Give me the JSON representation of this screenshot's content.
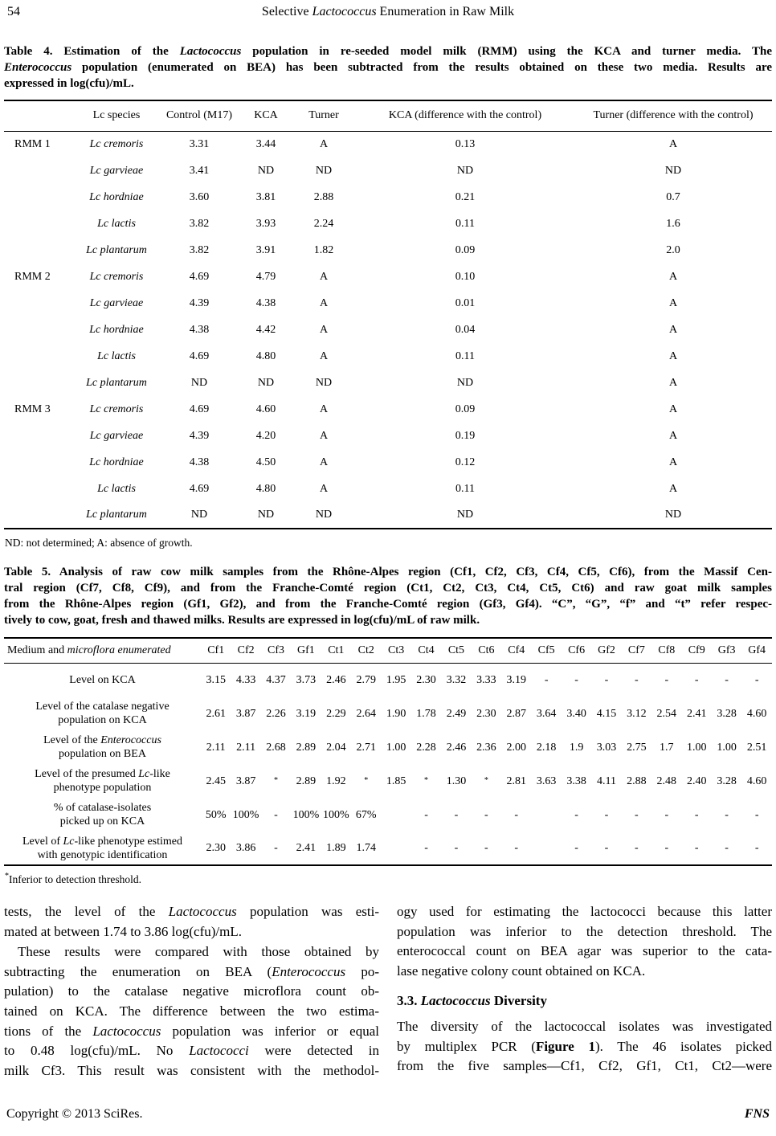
{
  "page": {
    "number": "54",
    "running_title": [
      {
        "t": "Selective "
      },
      {
        "t": "Lactococcus",
        "i": true
      },
      {
        "t": " Enumeration in Raw Milk"
      }
    ],
    "footer_left": "Copyright © 2013 SciRes.",
    "footer_right": "FNS"
  },
  "table4": {
    "caption_lines": [
      [
        {
          "t": "Table 4. Estimation of the "
        },
        {
          "t": "Lactococcus",
          "i": true
        },
        {
          "t": " population in re-seeded model milk (RMM) using the KCA and turner media. The"
        }
      ],
      [
        {
          "t": "Enterococcus",
          "i": true
        },
        {
          "t": " population (enumerated on BEA) has been subtracted from the results obtained on these two media. Results are"
        }
      ],
      [
        {
          "t": "expressed in log(cfu)/mL."
        }
      ]
    ],
    "headers": [
      "",
      "Lc species",
      "Control (M17)",
      "KCA",
      "Turner",
      "KCA (difference with the control)",
      "Turner (difference with the control)"
    ],
    "groups": [
      {
        "label": "RMM 1",
        "rows": [
          [
            "Lc cremoris",
            "3.31",
            "3.44",
            "A",
            "0.13",
            "A"
          ],
          [
            "Lc garvieae",
            "3.41",
            "ND",
            "ND",
            "ND",
            "ND"
          ],
          [
            "Lc hordniae",
            "3.60",
            "3.81",
            "2.88",
            "0.21",
            "0.7"
          ],
          [
            "Lc lactis",
            "3.82",
            "3.93",
            "2.24",
            "0.11",
            "1.6"
          ],
          [
            "Lc plantarum",
            "3.82",
            "3.91",
            "1.82",
            "0.09",
            "2.0"
          ]
        ]
      },
      {
        "label": "RMM 2",
        "rows": [
          [
            "Lc cremoris",
            "4.69",
            "4.79",
            "A",
            "0.10",
            "A"
          ],
          [
            "Lc garvieae",
            "4.39",
            "4.38",
            "A",
            "0.01",
            "A"
          ],
          [
            "Lc hordniae",
            "4.38",
            "4.42",
            "A",
            "0.04",
            "A"
          ],
          [
            "Lc lactis",
            "4.69",
            "4.80",
            "A",
            "0.11",
            "A"
          ],
          [
            "Lc plantarum",
            "ND",
            "ND",
            "ND",
            "ND",
            "A"
          ]
        ]
      },
      {
        "label": "RMM 3",
        "rows": [
          [
            "Lc cremoris",
            "4.69",
            "4.60",
            "A",
            "0.09",
            "A"
          ],
          [
            "Lc garvieae",
            "4.39",
            "4.20",
            "A",
            "0.19",
            "A"
          ],
          [
            "Lc hordniae",
            "4.38",
            "4.50",
            "A",
            "0.12",
            "A"
          ],
          [
            "Lc lactis",
            "4.69",
            "4.80",
            "A",
            "0.11",
            "A"
          ],
          [
            "Lc plantarum",
            "ND",
            "ND",
            "ND",
            "ND",
            "ND"
          ]
        ]
      }
    ],
    "footnote": "ND: not determined; A: absence of growth."
  },
  "table5": {
    "caption_lines": [
      [
        {
          "t": "Table 5. Analysis of raw cow milk samples from the Rhône-Alpes region (Cf1, Cf2, Cf3, Cf4, Cf5, Cf6), from the Massif Cen-"
        }
      ],
      [
        {
          "t": "tral region (Cf7, Cf8, Cf9), and from the Franche-Comté region (Ct1, Ct2, Ct3, Ct4, Ct5, Ct6) and raw goat milk samples"
        }
      ],
      [
        {
          "t": "from the Rhône-Alpes region (Gf1, Gf2), and from the Franche-Comté region (Gf3, Gf4). “C”, “G”, “f” and “t” refer respec-"
        }
      ],
      [
        {
          "t": "tively to cow, goat, fresh and thawed milks. Results are expressed in log(cfu)/mL of raw milk."
        }
      ]
    ],
    "first_header_segments": [
      {
        "t": "Medium and "
      },
      {
        "t": "microflora enumerated",
        "i": true
      }
    ],
    "sample_headers": [
      "Cf1",
      "Cf2",
      "Cf3",
      "Gf1",
      "Ct1",
      "Ct2",
      "Ct3",
      "Ct4",
      "Ct5",
      "Ct6",
      "Cf4",
      "Cf5",
      "Cf6",
      "Gf2",
      "Cf7",
      "Cf8",
      "Cf9",
      "Gf3",
      "Gf4"
    ],
    "rows": [
      {
        "label_lines": [
          [
            {
              "t": "Level on KCA"
            }
          ]
        ],
        "values": [
          "3.15",
          "4.33",
          "4.37",
          "3.73",
          "2.46",
          "2.79",
          "1.95",
          "2.30",
          "3.32",
          "3.33",
          "3.19",
          "-",
          "-",
          "-",
          "-",
          "-",
          "-",
          "-",
          "-"
        ]
      },
      {
        "label_lines": [
          [
            {
              "t": "Level of the catalase negative"
            }
          ],
          [
            {
              "t": "population on KCA"
            }
          ]
        ],
        "values": [
          "2.61",
          "3.87",
          "2.26",
          "3.19",
          "2.29",
          "2.64",
          "1.90",
          "1.78",
          "2.49",
          "2.30",
          "2.87",
          "3.64",
          "3.40",
          "4.15",
          "3.12",
          "2.54",
          "2.41",
          "3.28",
          "4.60"
        ]
      },
      {
        "label_lines": [
          [
            {
              "t": "Level of the "
            },
            {
              "t": "Enterococcus",
              "i": true
            }
          ],
          [
            {
              "t": "population on BEA"
            }
          ]
        ],
        "values": [
          "2.11",
          "2.11",
          "2.68",
          "2.89",
          "2.04",
          "2.71",
          "1.00",
          "2.28",
          "2.46",
          "2.36",
          "2.00",
          "2.18",
          "1.9",
          "3.03",
          "2.75",
          "1.7",
          "1.00",
          "1.00",
          "2.51"
        ]
      },
      {
        "label_lines": [
          [
            {
              "t": "Level of the presumed "
            },
            {
              "t": "Lc",
              "i": true
            },
            {
              "t": "-like"
            }
          ],
          [
            {
              "t": "phenotype population"
            }
          ]
        ],
        "values": [
          "2.45",
          "3.87",
          "*",
          "2.89",
          "1.92",
          "*",
          "1.85",
          "*",
          "1.30",
          "*",
          "2.81",
          "3.63",
          "3.38",
          "4.11",
          "2.88",
          "2.48",
          "2.40",
          "3.28",
          "4.60"
        ]
      },
      {
        "label_lines": [
          [
            {
              "t": "% of catalase-isolates"
            }
          ],
          [
            {
              "t": "picked up on KCA"
            }
          ]
        ],
        "values": [
          "50%",
          "100%",
          "-",
          "100%",
          "100%",
          "67%",
          "",
          "-",
          "-",
          "-",
          "-",
          "",
          "-",
          "-",
          "-",
          "-",
          "-",
          "-",
          "-"
        ]
      },
      {
        "label_lines": [
          [
            {
              "t": "Level of "
            },
            {
              "t": "Lc",
              "i": true
            },
            {
              "t": "-like phenotype estimed"
            }
          ],
          [
            {
              "t": "with genotypic identification"
            }
          ]
        ],
        "values": [
          "2.30",
          "3.86",
          "-",
          "2.41",
          "1.89",
          "1.74",
          "",
          "-",
          "-",
          "-",
          "-",
          "",
          "-",
          "-",
          "-",
          "-",
          "-",
          "-",
          "-"
        ]
      }
    ],
    "footnote_marker": "*",
    "footnote": "Inferior to detection threshold."
  },
  "body": {
    "left_blocks": [
      {
        "type": "p",
        "indent": false,
        "flush_last": false,
        "lines": [
          [
            {
              "t": "tests, the level of the "
            },
            {
              "t": "Lactococcus",
              "i": true
            },
            {
              "t": " population was esti-"
            }
          ],
          [
            {
              "t": "mated at between 1.74 to 3.86 log(cfu)/mL."
            }
          ]
        ]
      },
      {
        "type": "p",
        "indent": true,
        "flush_last": true,
        "lines": [
          [
            {
              "t": "These results were compared with those obtained by"
            }
          ],
          [
            {
              "t": "subtracting the enumeration on BEA ("
            },
            {
              "t": "Enterococcus",
              "i": true
            },
            {
              "t": " po-"
            }
          ],
          [
            {
              "t": "pulation) to the catalase negative microflora count ob-"
            }
          ],
          [
            {
              "t": "tained on KCA. The difference between the two estima-"
            }
          ],
          [
            {
              "t": "tions of the "
            },
            {
              "t": "Lactococcus",
              "i": true
            },
            {
              "t": " population was inferior or equal"
            }
          ],
          [
            {
              "t": "to 0.48 log(cfu)/mL. No "
            },
            {
              "t": "Lactococci",
              "i": true
            },
            {
              "t": " were detected in"
            }
          ],
          [
            {
              "t": "milk Cf3. This result was consistent with the methodol-"
            }
          ]
        ]
      }
    ],
    "right_blocks": [
      {
        "type": "p",
        "indent": false,
        "flush_last": false,
        "lines": [
          [
            {
              "t": "ogy used for estimating the lactococci because this latter"
            }
          ],
          [
            {
              "t": "population was inferior to the detection threshold. The"
            }
          ],
          [
            {
              "t": "enterococcal count on BEA agar was superior to the cata-"
            }
          ],
          [
            {
              "t": "lase negative colony count obtained on KCA."
            }
          ]
        ]
      },
      {
        "type": "h",
        "segments": [
          {
            "t": "3.3. ",
            "b": true
          },
          {
            "t": "Lactococcus",
            "b": true,
            "i": true
          },
          {
            "t": " Diversity",
            "b": true
          }
        ]
      },
      {
        "type": "p",
        "indent": false,
        "flush_last": true,
        "lines": [
          [
            {
              "t": "The diversity of the lactococcal isolates was investigated"
            }
          ],
          [
            {
              "t": "by multiplex PCR ("
            },
            {
              "t": "Figure 1",
              "b": true
            },
            {
              "t": "). The 46 isolates picked"
            }
          ],
          [
            {
              "t": "from the five samples—Cf1, Cf2, Gf1, Ct1, Ct2—were"
            }
          ]
        ]
      }
    ]
  }
}
